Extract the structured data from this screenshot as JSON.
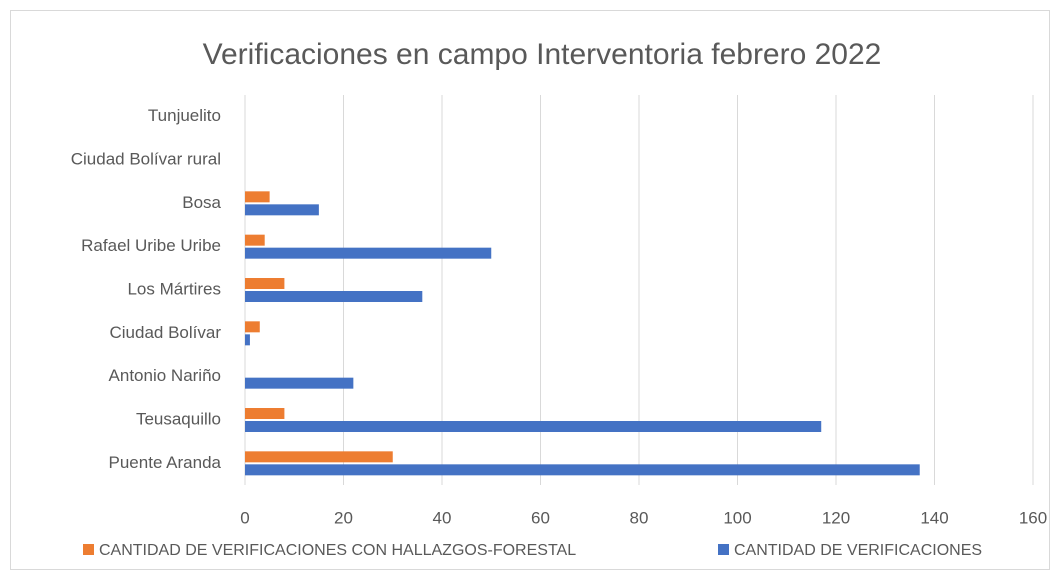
{
  "chart_data": {
    "type": "bar",
    "orientation": "horizontal",
    "title": "Verificaciones en campo Interventoria febrero 2022",
    "categories": [
      "Puente Aranda",
      "Teusaquillo",
      "Antonio Nariño",
      "Ciudad Bolívar",
      "Los Mártires",
      "Rafael Uribe Uribe",
      "Bosa",
      "Ciudad Bolívar rural",
      "Tunjuelito"
    ],
    "series": [
      {
        "name": "CANTIDAD DE VERIFICACIONES CON HALLAZGOS-FORESTAL",
        "color": "#ed7d31",
        "values": [
          30,
          8,
          0,
          3,
          8,
          4,
          5,
          0,
          0
        ]
      },
      {
        "name": "CANTIDAD DE VERIFICACIONES",
        "color": "#4472c4",
        "values": [
          137,
          117,
          22,
          1,
          36,
          50,
          15,
          0,
          0
        ]
      }
    ],
    "xlim": [
      0,
      160
    ],
    "xticks": [
      0,
      20,
      40,
      60,
      80,
      100,
      120,
      140,
      160
    ],
    "grid": true,
    "legend": "bottom"
  }
}
